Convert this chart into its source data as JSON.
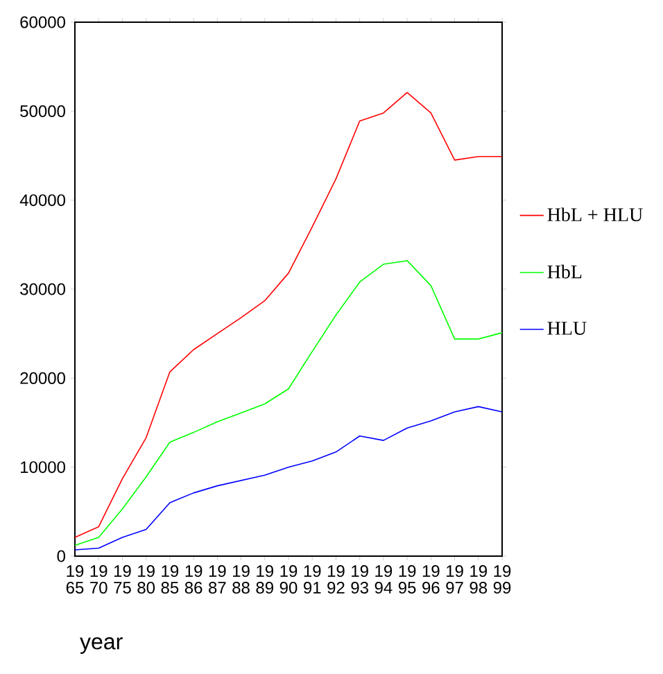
{
  "chart_data": {
    "type": "line",
    "xlabel": "year",
    "categories": [
      "19 65",
      "19 70",
      "19 75",
      "19 80",
      "19 85",
      "19 86",
      "19 87",
      "19 88",
      "19 89",
      "19 90",
      "19 91",
      "19 92",
      "19 93",
      "19 94",
      "19 95",
      "19 96",
      "19 97",
      "19 98",
      "19 99"
    ],
    "series": [
      {
        "name": "HbL + HLU",
        "color": "#ff0000",
        "values": [
          2100,
          3300,
          8700,
          13300,
          20700,
          23200,
          25000,
          26800,
          28700,
          31800,
          37000,
          42400,
          48900,
          49800,
          52100,
          49800,
          44500,
          44900,
          44900
        ]
      },
      {
        "name": "HbL",
        "color": "#00ff00",
        "values": [
          1200,
          2100,
          5300,
          8900,
          12800,
          13900,
          15100,
          16100,
          17100,
          18800,
          23000,
          27100,
          30800,
          32800,
          33200,
          30400,
          24400,
          24400,
          25100
        ]
      },
      {
        "name": "HLU",
        "color": "#0000ff",
        "values": [
          700,
          900,
          2100,
          3000,
          6000,
          7100,
          7900,
          8500,
          9100,
          10000,
          10700,
          11700,
          13500,
          13000,
          14400,
          15200,
          16200,
          16800,
          16200
        ]
      }
    ],
    "ylim": [
      0,
      60000
    ],
    "yticks": [
      0,
      10000,
      20000,
      30000,
      40000,
      50000,
      60000
    ],
    "legend": "right",
    "grid": false,
    "marker": "none",
    "line_style": "solid"
  }
}
